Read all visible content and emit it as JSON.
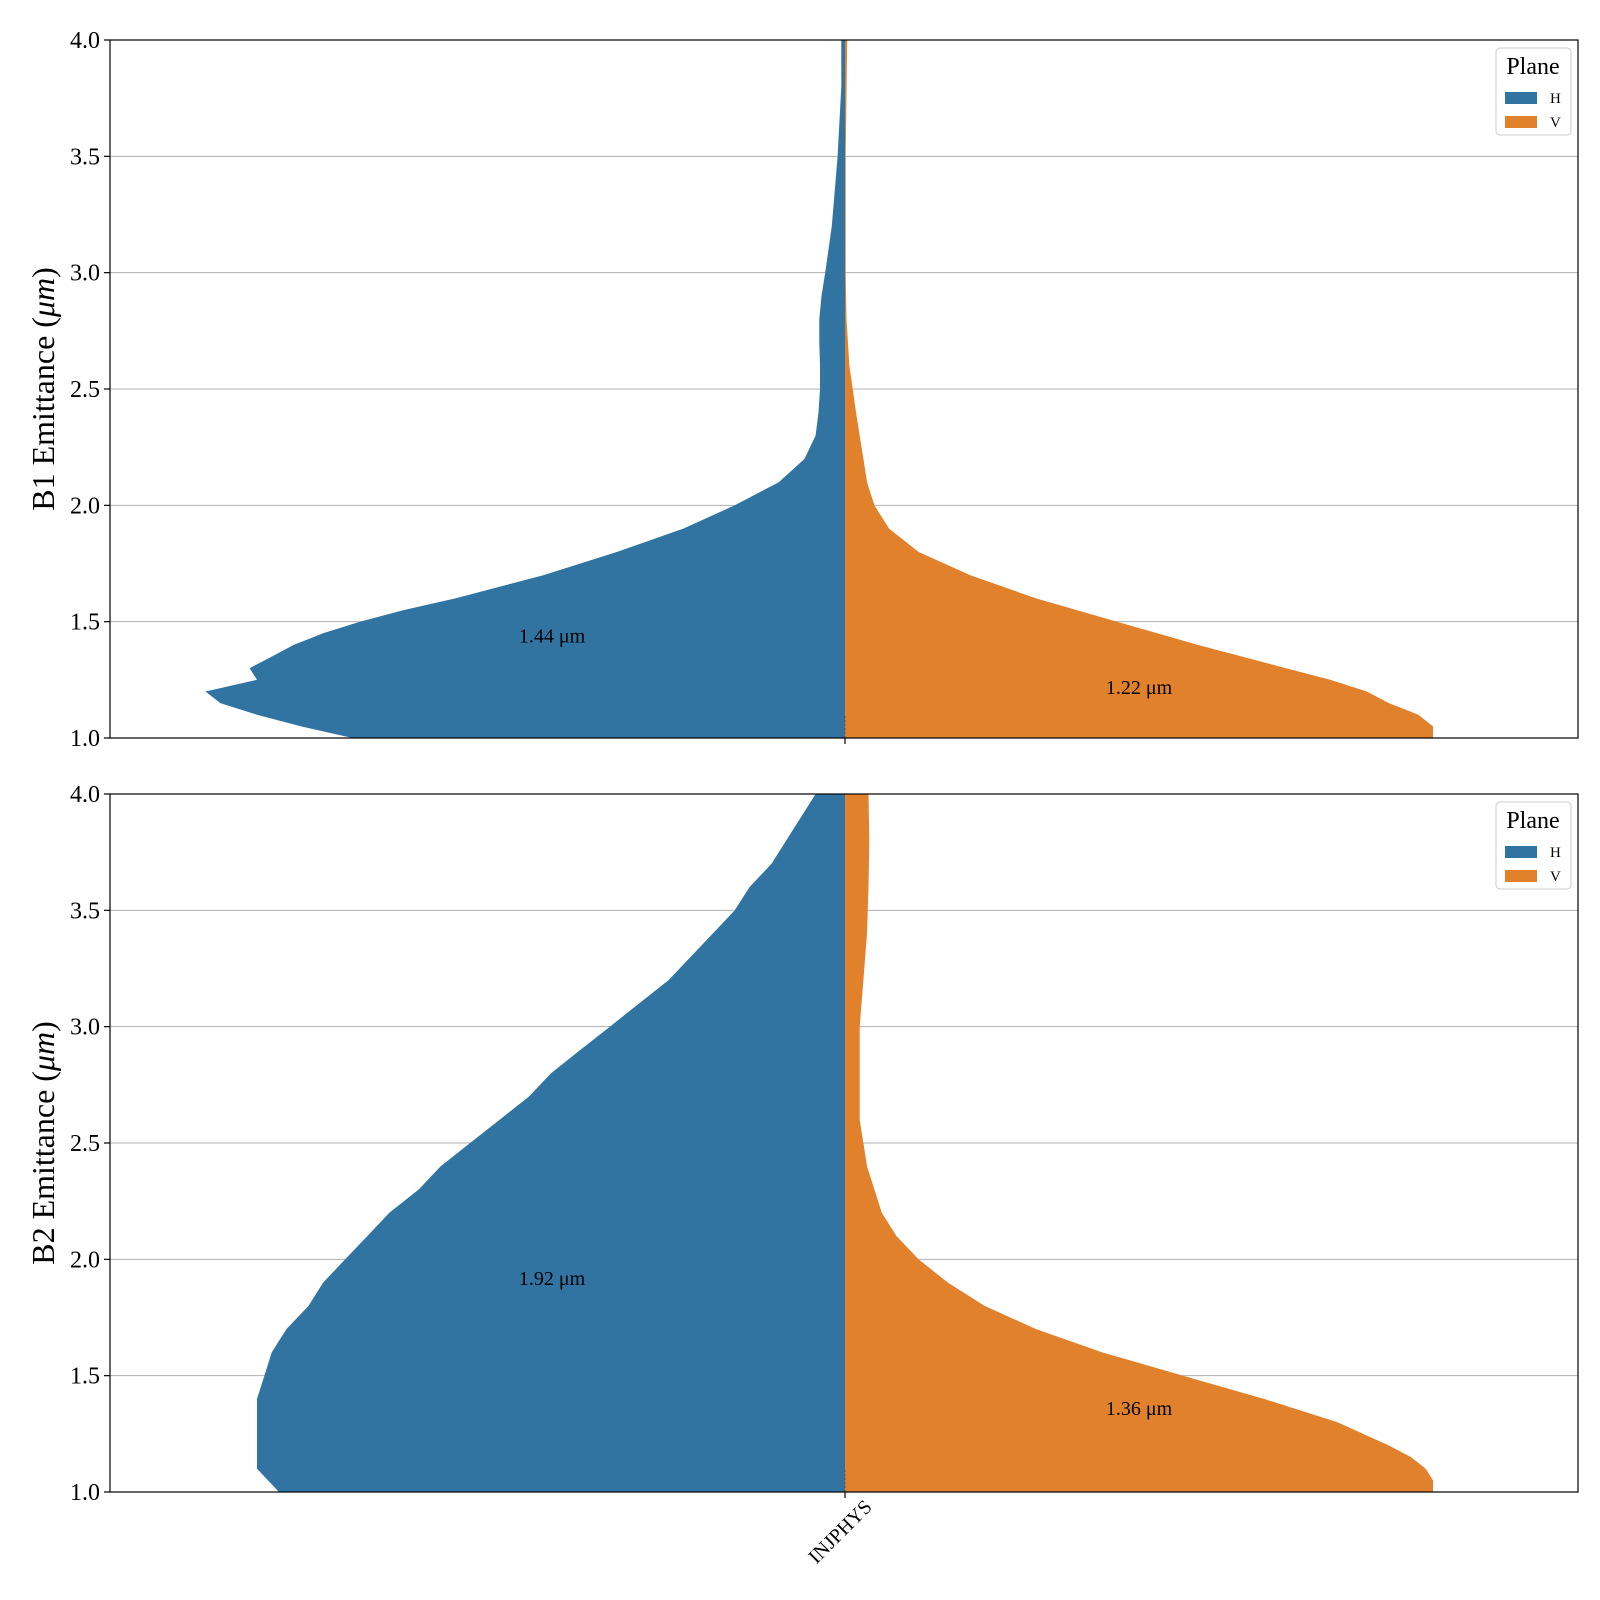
{
  "colors": {
    "H": "#3274a1",
    "V": "#e1812c",
    "grid": "#b0b0b0",
    "axis": "#000000"
  },
  "chart_data": [
    {
      "type": "violin",
      "ylabel_main": "B1 Emittance (",
      "ylabel_unit": "μm",
      "ylabel_close": ")",
      "ylim": [
        1.0,
        4.0
      ],
      "yticks": [
        "1.0",
        "1.5",
        "2.0",
        "2.5",
        "3.0",
        "3.5",
        "4.0"
      ],
      "grid": "horizontal",
      "category": "INJPHYS",
      "legend": {
        "title": "Plane",
        "position": "top-right",
        "entries": [
          "H",
          "V"
        ]
      },
      "series": [
        {
          "name": "H",
          "side": "left",
          "median_label": "1.44 μm",
          "median_label_y": 1.44,
          "density": [
            [
              1.0,
              0.67
            ],
            [
              1.05,
              0.74
            ],
            [
              1.1,
              0.8
            ],
            [
              1.15,
              0.85
            ],
            [
              1.2,
              0.87
            ],
            [
              1.25,
              0.8
            ],
            [
              1.3,
              0.81
            ],
            [
              1.35,
              0.78
            ],
            [
              1.4,
              0.75
            ],
            [
              1.45,
              0.71
            ],
            [
              1.5,
              0.66
            ],
            [
              1.55,
              0.6
            ],
            [
              1.6,
              0.53
            ],
            [
              1.7,
              0.41
            ],
            [
              1.8,
              0.31
            ],
            [
              1.9,
              0.22
            ],
            [
              2.0,
              0.15
            ],
            [
              2.1,
              0.09
            ],
            [
              2.2,
              0.055
            ],
            [
              2.3,
              0.04
            ],
            [
              2.4,
              0.036
            ],
            [
              2.5,
              0.034
            ],
            [
              2.6,
              0.034
            ],
            [
              2.7,
              0.035
            ],
            [
              2.8,
              0.035
            ],
            [
              2.9,
              0.032
            ],
            [
              3.0,
              0.027
            ],
            [
              3.2,
              0.018
            ],
            [
              3.5,
              0.01
            ],
            [
              3.8,
              0.005
            ],
            [
              4.0,
              0.005
            ]
          ]
        },
        {
          "name": "V",
          "side": "right",
          "median_label": "1.22 μm",
          "median_label_y": 1.22,
          "density": [
            [
              1.0,
              0.8
            ],
            [
              1.05,
              0.8
            ],
            [
              1.1,
              0.78
            ],
            [
              1.15,
              0.74
            ],
            [
              1.2,
              0.71
            ],
            [
              1.25,
              0.66
            ],
            [
              1.3,
              0.6
            ],
            [
              1.4,
              0.48
            ],
            [
              1.5,
              0.37
            ],
            [
              1.6,
              0.26
            ],
            [
              1.7,
              0.17
            ],
            [
              1.8,
              0.1
            ],
            [
              1.9,
              0.06
            ],
            [
              2.0,
              0.04
            ],
            [
              2.1,
              0.03
            ],
            [
              2.2,
              0.025
            ],
            [
              2.4,
              0.015
            ],
            [
              2.6,
              0.006
            ],
            [
              2.8,
              0.002
            ],
            [
              3.0,
              0.001
            ],
            [
              3.5,
              0.001
            ],
            [
              4.0,
              0.003
            ]
          ]
        }
      ]
    },
    {
      "type": "violin",
      "ylabel_main": "B2 Emittance (",
      "ylabel_unit": "μm",
      "ylabel_close": ")",
      "ylim": [
        1.0,
        4.0
      ],
      "yticks": [
        "1.0",
        "1.5",
        "2.0",
        "2.5",
        "3.0",
        "3.5",
        "4.0"
      ],
      "grid": "horizontal",
      "category": "INJPHYS",
      "legend": {
        "title": "Plane",
        "position": "top-right",
        "entries": [
          "H",
          "V"
        ]
      },
      "series": [
        {
          "name": "H",
          "side": "left",
          "median_label": "1.92 μm",
          "median_label_y": 1.92,
          "density": [
            [
              1.0,
              0.77
            ],
            [
              1.1,
              0.8
            ],
            [
              1.2,
              0.8
            ],
            [
              1.3,
              0.8
            ],
            [
              1.4,
              0.8
            ],
            [
              1.5,
              0.79
            ],
            [
              1.6,
              0.78
            ],
            [
              1.7,
              0.76
            ],
            [
              1.8,
              0.73
            ],
            [
              1.9,
              0.71
            ],
            [
              2.0,
              0.68
            ],
            [
              2.1,
              0.65
            ],
            [
              2.2,
              0.62
            ],
            [
              2.3,
              0.58
            ],
            [
              2.4,
              0.55
            ],
            [
              2.5,
              0.51
            ],
            [
              2.6,
              0.47
            ],
            [
              2.7,
              0.43
            ],
            [
              2.8,
              0.4
            ],
            [
              2.9,
              0.36
            ],
            [
              3.0,
              0.32
            ],
            [
              3.1,
              0.28
            ],
            [
              3.2,
              0.24
            ],
            [
              3.3,
              0.21
            ],
            [
              3.4,
              0.18
            ],
            [
              3.5,
              0.15
            ],
            [
              3.6,
              0.13
            ],
            [
              3.7,
              0.1
            ],
            [
              3.8,
              0.08
            ],
            [
              3.9,
              0.06
            ],
            [
              4.0,
              0.04
            ]
          ]
        },
        {
          "name": "V",
          "side": "right",
          "median_label": "1.36 μm",
          "median_label_y": 1.36,
          "density": [
            [
              1.0,
              0.8
            ],
            [
              1.05,
              0.8
            ],
            [
              1.1,
              0.79
            ],
            [
              1.15,
              0.77
            ],
            [
              1.2,
              0.74
            ],
            [
              1.3,
              0.67
            ],
            [
              1.4,
              0.57
            ],
            [
              1.5,
              0.46
            ],
            [
              1.6,
              0.35
            ],
            [
              1.7,
              0.26
            ],
            [
              1.8,
              0.19
            ],
            [
              1.9,
              0.14
            ],
            [
              2.0,
              0.1
            ],
            [
              2.1,
              0.07
            ],
            [
              2.2,
              0.05
            ],
            [
              2.3,
              0.04
            ],
            [
              2.4,
              0.03
            ],
            [
              2.5,
              0.025
            ],
            [
              2.6,
              0.02
            ],
            [
              2.8,
              0.02
            ],
            [
              3.0,
              0.02
            ],
            [
              3.2,
              0.025
            ],
            [
              3.4,
              0.03
            ],
            [
              3.6,
              0.032
            ],
            [
              3.8,
              0.033
            ],
            [
              4.0,
              0.032
            ]
          ]
        }
      ]
    }
  ]
}
